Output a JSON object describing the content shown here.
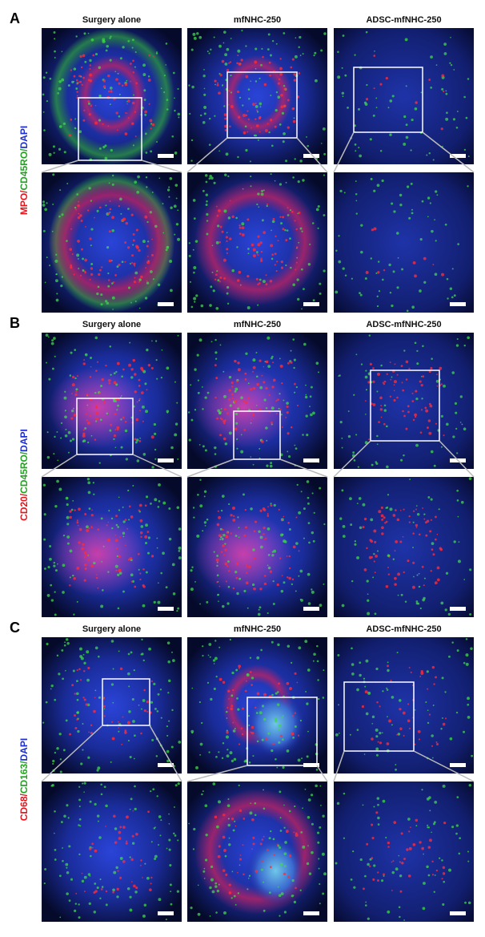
{
  "panels": [
    {
      "label": "A",
      "columns": [
        "Surgery alone",
        "mfNHC-250",
        "ADSC-mfNHC-250"
      ],
      "stain": [
        {
          "text": "MPO/",
          "color": "#e3161d"
        },
        {
          "text": "CD45RO/",
          "color": "#21a321"
        },
        {
          "text": "DAPI",
          "color": "#1c2fd4"
        }
      ]
    },
    {
      "label": "B",
      "columns": [
        "Surgery alone",
        "mfNHC-250",
        "ADSC-mfNHC-250"
      ],
      "stain": [
        {
          "text": "CD20/",
          "color": "#e3161d"
        },
        {
          "text": "CD45RO/",
          "color": "#21a321"
        },
        {
          "text": "DAPI",
          "color": "#1c2fd4"
        }
      ]
    },
    {
      "label": "C",
      "columns": [
        "Surgery alone",
        "mfNHC-250",
        "ADSC-mfNHC-250"
      ],
      "stain": [
        {
          "text": "CD68/",
          "color": "#e3161d"
        },
        {
          "text": "CD163/",
          "color": "#21a321"
        },
        {
          "text": "DAPI",
          "color": "#1c2fd4"
        }
      ]
    }
  ]
}
